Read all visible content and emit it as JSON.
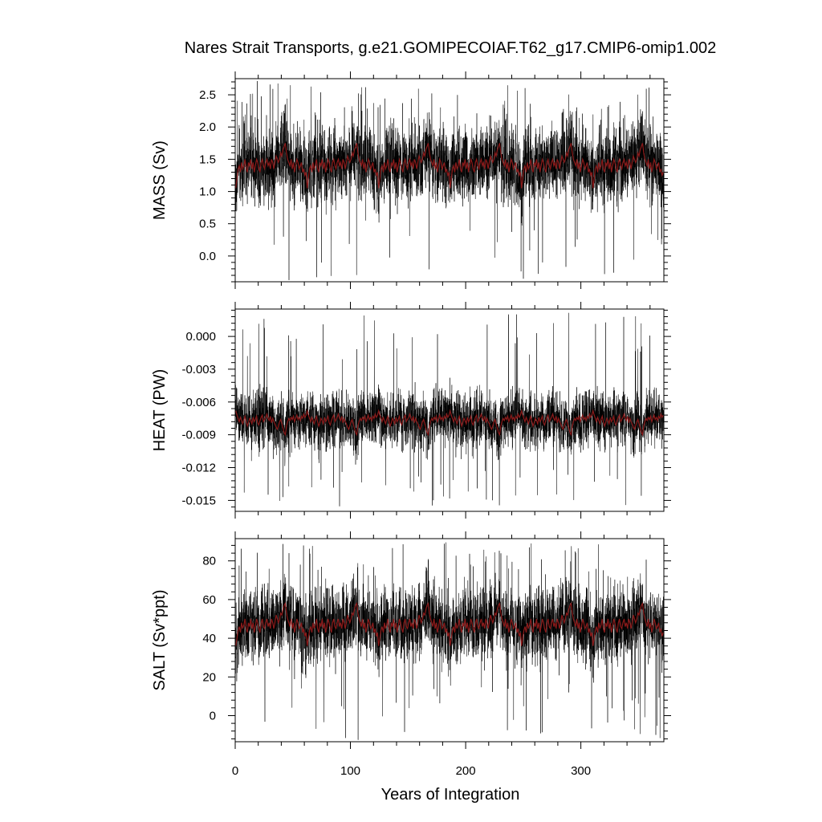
{
  "chart_data": {
    "type": "line",
    "title": "Nares Strait Transports, g.e21.GOMIPECOIAF.T62_g17.CMIP6-omip1.002",
    "xlabel": "Years of Integration",
    "xlim": [
      0,
      372
    ],
    "xticks": [
      0,
      100,
      200,
      300
    ],
    "xtick_labels": [
      "0",
      "100",
      "200",
      "300"
    ],
    "forcing_cycle_years": 62,
    "legend": "none",
    "grid": false,
    "series_colors": {
      "monthly": "#000000",
      "annual_mean": "#8b1a1a"
    },
    "panels": [
      {
        "name": "mass",
        "ylabel": "MASS (Sv)",
        "ylim": [
          -0.4,
          2.75
        ],
        "yticks": [
          0.0,
          0.5,
          1.0,
          1.5,
          2.0,
          2.5
        ],
        "ytick_labels": [
          "0.0",
          "0.5",
          "1.0",
          "1.5",
          "2.0",
          "2.5"
        ],
        "annual_mean_cycle": [
          1.05,
          1.2,
          1.35,
          1.4,
          1.3,
          1.45,
          1.35,
          1.4,
          1.5,
          1.35,
          1.3,
          1.45,
          1.4,
          1.5,
          1.35,
          1.45,
          1.3,
          1.4,
          1.5,
          1.45,
          1.35,
          1.3,
          1.45,
          1.5,
          1.4,
          1.35,
          1.45,
          1.5,
          1.4,
          1.45,
          1.35,
          1.5,
          1.45,
          1.35,
          1.45,
          1.55,
          1.5,
          1.45,
          1.5,
          1.6,
          1.55,
          1.65,
          1.7,
          1.75,
          1.6,
          1.5,
          1.45,
          1.4,
          1.5,
          1.35,
          1.45,
          1.3,
          1.4,
          1.5,
          1.45,
          1.35,
          1.4,
          1.45,
          1.3,
          1.35,
          1.25,
          1.3
        ],
        "monthly_mean": 1.42,
        "monthly_spread": 0.28,
        "spike_max": 2.72,
        "spike_min": -0.38
      },
      {
        "name": "heat",
        "ylabel": "HEAT (PW)",
        "ylim": [
          -0.016,
          0.0025
        ],
        "yticks": [
          0.0,
          -0.003,
          -0.006,
          -0.009,
          -0.012,
          -0.015
        ],
        "ytick_labels": [
          "0.000",
          "-0.003",
          "-0.006",
          "-0.009",
          "-0.012",
          "-0.015"
        ],
        "annual_mean_cycle": [
          -0.0068,
          -0.0072,
          -0.0075,
          -0.0078,
          -0.0074,
          -0.0077,
          -0.008,
          -0.0076,
          -0.0073,
          -0.0078,
          -0.0082,
          -0.0079,
          -0.0075,
          -0.0077,
          -0.008,
          -0.0074,
          -0.0078,
          -0.0076,
          -0.0073,
          -0.0079,
          -0.0081,
          -0.0077,
          -0.0074,
          -0.0072,
          -0.0078,
          -0.0076,
          -0.0074,
          -0.0071,
          -0.0075,
          -0.0077,
          -0.0073,
          -0.0079,
          -0.0075,
          -0.0078,
          -0.008,
          -0.0083,
          -0.0085,
          -0.0082,
          -0.0078,
          -0.0076,
          -0.008,
          -0.0084,
          -0.0088,
          -0.009,
          -0.0082,
          -0.0078,
          -0.0075,
          -0.0077,
          -0.0074,
          -0.0076,
          -0.0073,
          -0.0078,
          -0.0075,
          -0.0072,
          -0.0076,
          -0.0074,
          -0.0077,
          -0.0073,
          -0.0075,
          -0.0071,
          -0.0074,
          -0.0072
        ],
        "monthly_mean": -0.0076,
        "monthly_spread": 0.0012,
        "spike_max": 0.0022,
        "spike_min": -0.0158
      },
      {
        "name": "salt",
        "ylabel": "SALT (Sv*ppt)",
        "ylim": [
          -13.5,
          91.5
        ],
        "yticks": [
          0,
          20,
          40,
          60,
          80
        ],
        "ytick_labels": [
          "0",
          "20",
          "40",
          "60",
          "80"
        ],
        "annual_mean_cycle": [
          36,
          40,
          44,
          46,
          43,
          48,
          45,
          47,
          50,
          45,
          43,
          48,
          46,
          50,
          45,
          48,
          43,
          46,
          50,
          48,
          45,
          43,
          48,
          50,
          46,
          45,
          48,
          50,
          46,
          48,
          45,
          50,
          48,
          45,
          48,
          52,
          50,
          48,
          50,
          53,
          52,
          55,
          57,
          58,
          53,
          50,
          48,
          46,
          50,
          45,
          48,
          43,
          46,
          50,
          48,
          45,
          46,
          48,
          43,
          45,
          41,
          43
        ],
        "monthly_mean": 47,
        "monthly_spread": 9,
        "spike_max": 90,
        "spike_min": -13
      }
    ]
  }
}
